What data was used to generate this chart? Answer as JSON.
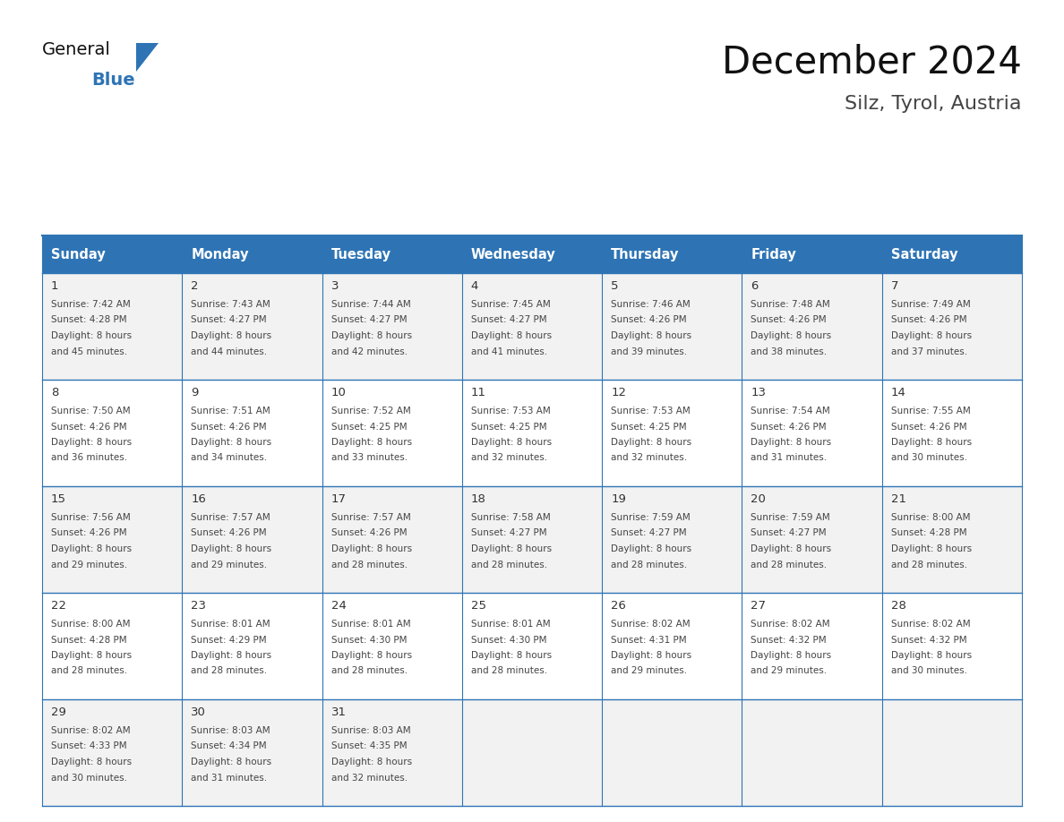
{
  "title": "December 2024",
  "subtitle": "Silz, Tyrol, Austria",
  "header_bg_color": "#2E74B5",
  "header_text_color": "#FFFFFF",
  "day_names": [
    "Sunday",
    "Monday",
    "Tuesday",
    "Wednesday",
    "Thursday",
    "Friday",
    "Saturday"
  ],
  "row_bg_colors": [
    "#F2F2F2",
    "#FFFFFF"
  ],
  "border_color": "#2E74B5",
  "text_color": "#444444",
  "num_color": "#333333",
  "weeks": [
    [
      {
        "day": 1,
        "sunrise": "7:42 AM",
        "sunset": "4:28 PM",
        "daylight": "8 hours and 45 minutes."
      },
      {
        "day": 2,
        "sunrise": "7:43 AM",
        "sunset": "4:27 PM",
        "daylight": "8 hours and 44 minutes."
      },
      {
        "day": 3,
        "sunrise": "7:44 AM",
        "sunset": "4:27 PM",
        "daylight": "8 hours and 42 minutes."
      },
      {
        "day": 4,
        "sunrise": "7:45 AM",
        "sunset": "4:27 PM",
        "daylight": "8 hours and 41 minutes."
      },
      {
        "day": 5,
        "sunrise": "7:46 AM",
        "sunset": "4:26 PM",
        "daylight": "8 hours and 39 minutes."
      },
      {
        "day": 6,
        "sunrise": "7:48 AM",
        "sunset": "4:26 PM",
        "daylight": "8 hours and 38 minutes."
      },
      {
        "day": 7,
        "sunrise": "7:49 AM",
        "sunset": "4:26 PM",
        "daylight": "8 hours and 37 minutes."
      }
    ],
    [
      {
        "day": 8,
        "sunrise": "7:50 AM",
        "sunset": "4:26 PM",
        "daylight": "8 hours and 36 minutes."
      },
      {
        "day": 9,
        "sunrise": "7:51 AM",
        "sunset": "4:26 PM",
        "daylight": "8 hours and 34 minutes."
      },
      {
        "day": 10,
        "sunrise": "7:52 AM",
        "sunset": "4:25 PM",
        "daylight": "8 hours and 33 minutes."
      },
      {
        "day": 11,
        "sunrise": "7:53 AM",
        "sunset": "4:25 PM",
        "daylight": "8 hours and 32 minutes."
      },
      {
        "day": 12,
        "sunrise": "7:53 AM",
        "sunset": "4:25 PM",
        "daylight": "8 hours and 32 minutes."
      },
      {
        "day": 13,
        "sunrise": "7:54 AM",
        "sunset": "4:26 PM",
        "daylight": "8 hours and 31 minutes."
      },
      {
        "day": 14,
        "sunrise": "7:55 AM",
        "sunset": "4:26 PM",
        "daylight": "8 hours and 30 minutes."
      }
    ],
    [
      {
        "day": 15,
        "sunrise": "7:56 AM",
        "sunset": "4:26 PM",
        "daylight": "8 hours and 29 minutes."
      },
      {
        "day": 16,
        "sunrise": "7:57 AM",
        "sunset": "4:26 PM",
        "daylight": "8 hours and 29 minutes."
      },
      {
        "day": 17,
        "sunrise": "7:57 AM",
        "sunset": "4:26 PM",
        "daylight": "8 hours and 28 minutes."
      },
      {
        "day": 18,
        "sunrise": "7:58 AM",
        "sunset": "4:27 PM",
        "daylight": "8 hours and 28 minutes."
      },
      {
        "day": 19,
        "sunrise": "7:59 AM",
        "sunset": "4:27 PM",
        "daylight": "8 hours and 28 minutes."
      },
      {
        "day": 20,
        "sunrise": "7:59 AM",
        "sunset": "4:27 PM",
        "daylight": "8 hours and 28 minutes."
      },
      {
        "day": 21,
        "sunrise": "8:00 AM",
        "sunset": "4:28 PM",
        "daylight": "8 hours and 28 minutes."
      }
    ],
    [
      {
        "day": 22,
        "sunrise": "8:00 AM",
        "sunset": "4:28 PM",
        "daylight": "8 hours and 28 minutes."
      },
      {
        "day": 23,
        "sunrise": "8:01 AM",
        "sunset": "4:29 PM",
        "daylight": "8 hours and 28 minutes."
      },
      {
        "day": 24,
        "sunrise": "8:01 AM",
        "sunset": "4:30 PM",
        "daylight": "8 hours and 28 minutes."
      },
      {
        "day": 25,
        "sunrise": "8:01 AM",
        "sunset": "4:30 PM",
        "daylight": "8 hours and 28 minutes."
      },
      {
        "day": 26,
        "sunrise": "8:02 AM",
        "sunset": "4:31 PM",
        "daylight": "8 hours and 29 minutes."
      },
      {
        "day": 27,
        "sunrise": "8:02 AM",
        "sunset": "4:32 PM",
        "daylight": "8 hours and 29 minutes."
      },
      {
        "day": 28,
        "sunrise": "8:02 AM",
        "sunset": "4:32 PM",
        "daylight": "8 hours and 30 minutes."
      }
    ],
    [
      {
        "day": 29,
        "sunrise": "8:02 AM",
        "sunset": "4:33 PM",
        "daylight": "8 hours and 30 minutes."
      },
      {
        "day": 30,
        "sunrise": "8:03 AM",
        "sunset": "4:34 PM",
        "daylight": "8 hours and 31 minutes."
      },
      {
        "day": 31,
        "sunrise": "8:03 AM",
        "sunset": "4:35 PM",
        "daylight": "8 hours and 32 minutes."
      },
      null,
      null,
      null,
      null
    ]
  ],
  "logo_triangle_color": "#2E74B5",
  "fig_width": 11.88,
  "fig_height": 9.18,
  "dpi": 100
}
